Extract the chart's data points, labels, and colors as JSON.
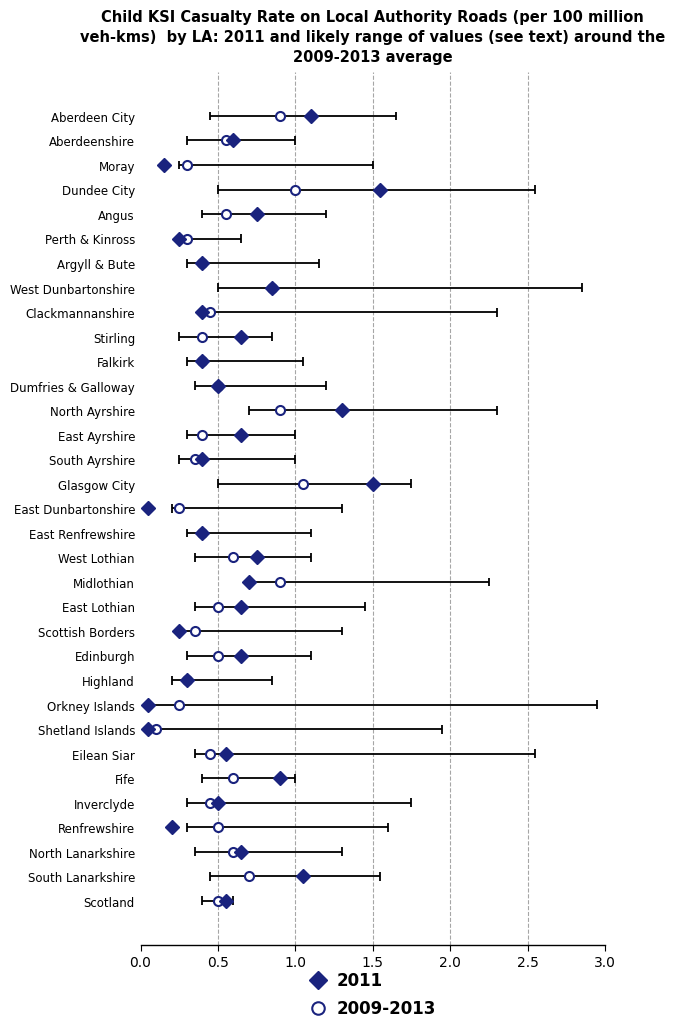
{
  "title": "Child KSI Casualty Rate on Local Authority Roads (per 100 million\nveh-kms)  by LA: 2011 and likely range of values (see text) around the\n2009-2013 average",
  "categories": [
    "Aberdeen City",
    "Aberdeenshire",
    "Moray",
    "Dundee City",
    "Angus",
    "Perth & Kinross",
    "Argyll & Bute",
    "West Dunbartonshire",
    "Clackmannanshire",
    "Stirling",
    "Falkirk",
    "Dumfries & Galloway",
    "North Ayrshire",
    "East Ayrshire",
    "South Ayrshire",
    "Glasgow City",
    "East Dunbartonshire",
    "East Renfrewshire",
    "West Lothian",
    "Midlothian",
    "East Lothian",
    "Scottish Borders",
    "Edinburgh",
    "Highland",
    "Orkney Islands",
    "Shetland Islands",
    "Eilean Siar",
    "Fife",
    "Inverclyde",
    "Renfrewshire",
    "North Lanarkshire",
    "South Lanarkshire",
    "Scotland"
  ],
  "val_2011": [
    1.1,
    0.6,
    0.15,
    1.55,
    0.75,
    0.25,
    0.4,
    0.85,
    0.4,
    0.65,
    0.4,
    0.5,
    1.3,
    0.65,
    0.4,
    1.5,
    0.05,
    0.4,
    0.75,
    0.7,
    0.65,
    0.25,
    0.65,
    0.3,
    0.05,
    0.05,
    0.55,
    0.9,
    0.5,
    0.2,
    0.65,
    1.05,
    0.55
  ],
  "val_avg": [
    0.9,
    0.55,
    0.3,
    1.0,
    0.55,
    0.3,
    0.4,
    0.85,
    0.45,
    0.4,
    0.4,
    0.5,
    0.9,
    0.4,
    0.35,
    1.05,
    0.25,
    0.4,
    0.6,
    0.9,
    0.5,
    0.35,
    0.5,
    0.3,
    0.25,
    0.1,
    0.45,
    0.6,
    0.45,
    0.5,
    0.6,
    0.7,
    0.5
  ],
  "err_low_abs": [
    0.45,
    0.25,
    0.05,
    0.5,
    0.15,
    0.05,
    0.1,
    0.35,
    0.05,
    0.15,
    0.1,
    0.15,
    0.2,
    0.1,
    0.1,
    0.55,
    0.05,
    0.1,
    0.25,
    0.2,
    0.15,
    0.1,
    0.2,
    0.1,
    0.2,
    0.05,
    0.1,
    0.2,
    0.15,
    0.2,
    0.25,
    0.25,
    0.1
  ],
  "err_high_abs": [
    0.75,
    0.45,
    1.2,
    1.55,
    0.65,
    0.35,
    0.75,
    2.0,
    1.85,
    0.45,
    0.65,
    0.7,
    1.4,
    0.6,
    0.65,
    0.7,
    1.05,
    0.7,
    0.5,
    1.35,
    0.95,
    0.95,
    0.6,
    0.55,
    2.7,
    1.85,
    2.1,
    0.4,
    1.3,
    1.1,
    0.7,
    0.85,
    0.1
  ],
  "diamond_color": "#1a237e",
  "circle_facecolor": "#ffffff",
  "circle_edgecolor": "#1a237e",
  "xlim": [
    0.0,
    3.0
  ],
  "xticks": [
    0.0,
    0.5,
    1.0,
    1.5,
    2.0,
    2.5,
    3.0
  ],
  "dashed_lines_x": [
    0.5,
    1.0,
    1.5,
    2.0,
    2.5
  ],
  "background_color": "#ffffff"
}
